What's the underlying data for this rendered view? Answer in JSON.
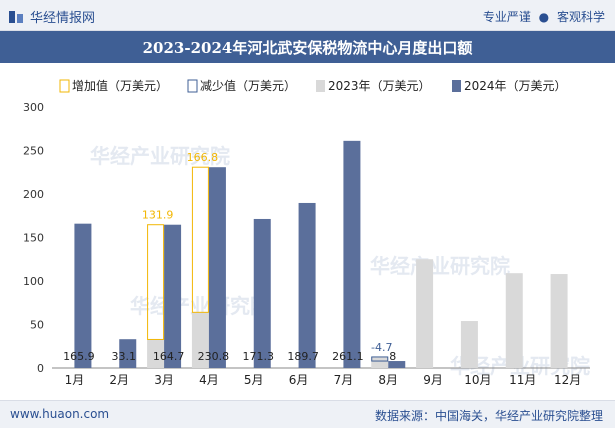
{
  "header": {
    "logo_text": "华经情报网",
    "tagline_left": "专业严谨",
    "tagline_right": "客观科学"
  },
  "title": "2023-2024年河北武安保税物流中心月度出口额",
  "footer": {
    "site": "www.huaon.com",
    "source": "数据来源：中国海关，华经产业研究院整理"
  },
  "watermark": "华经产业研究院",
  "colors": {
    "increase": "#f2b705",
    "decrease": "#3f5f95",
    "y2023": "#d9d9d9",
    "y2024": "#5b6f9b",
    "header_bg": "#3f5f95"
  },
  "chart_data": {
    "type": "bar",
    "categories": [
      "1月",
      "2月",
      "3月",
      "4月",
      "5月",
      "6月",
      "7月",
      "8月",
      "9月",
      "10月",
      "11月",
      "12月"
    ],
    "series": [
      {
        "name": "2023年（万美元）",
        "values": [
          0,
          0,
          32.8,
          64.0,
          0,
          0,
          0,
          12.7,
          125,
          54,
          109,
          108
        ]
      },
      {
        "name": "2024年（万美元）",
        "values": [
          165.9,
          33.1,
          164.7,
          230.8,
          171.3,
          189.7,
          261.1,
          8,
          null,
          null,
          null,
          null
        ]
      }
    ],
    "change": [
      {
        "month": "3月",
        "type": "increase",
        "value": 131.9
      },
      {
        "month": "4月",
        "type": "increase",
        "value": 166.8
      },
      {
        "month": "8月",
        "type": "decrease",
        "value": -4.7
      }
    ],
    "legend": [
      "增加值（万美元）",
      "减少值（万美元）",
      "2023年（万美元）",
      "2024年（万美元）"
    ],
    "ylim": [
      0,
      300
    ],
    "yticks": [
      0,
      50,
      100,
      150,
      200,
      250,
      300
    ],
    "value_labels": [
      "165.9",
      "33.1",
      "164.7",
      "230.8",
      "171.3",
      "189.7",
      "261.1",
      "8"
    ],
    "change_labels": [
      "131.9",
      "166.8",
      "-4.7"
    ],
    "legend_position": "top"
  }
}
